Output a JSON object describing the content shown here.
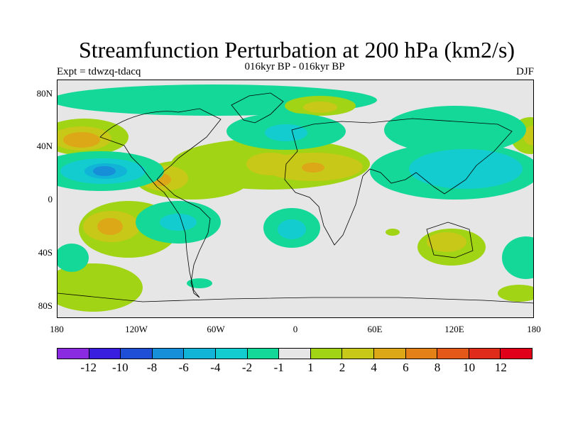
{
  "title": "Streamfunction Perturbation at 200 hPa (km2/s)",
  "subtitle": "016kyr BP - 016kyr BP",
  "experiment": "Expt = tdwzq-tdacq",
  "season": "DJF",
  "lat_labels": [
    "80N",
    "40N",
    "0",
    "40S",
    "80S"
  ],
  "lon_labels": [
    "180",
    "120W",
    "60W",
    "0",
    "60E",
    "120E",
    "180"
  ],
  "colorbar": {
    "labels": [
      "-12",
      "-10",
      "-8",
      "-6",
      "-4",
      "-2",
      "-1",
      "1",
      "2",
      "4",
      "6",
      "8",
      "10",
      "12"
    ],
    "colors": [
      "#8a2be2",
      "#3a1ee0",
      "#1f4fd6",
      "#168fd8",
      "#11b3d6",
      "#12ccd0",
      "#14d898",
      "#e6e6e6",
      "#a0d414",
      "#c8c818",
      "#dca818",
      "#e48018",
      "#e4581a",
      "#e02c1a",
      "#e0001a"
    ]
  }
}
